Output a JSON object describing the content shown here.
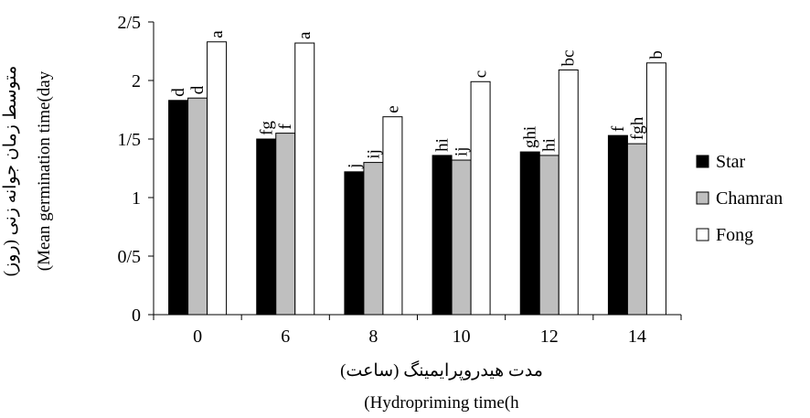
{
  "chart_data": {
    "type": "bar",
    "categories": [
      "0",
      "6",
      "8",
      "10",
      "12",
      "14"
    ],
    "series": [
      {
        "name": "Star",
        "color": "#000000",
        "values": [
          1.83,
          1.5,
          1.22,
          1.36,
          1.39,
          1.53
        ],
        "letters": [
          "d",
          "fg",
          "j",
          "hi",
          "ghi",
          "f"
        ]
      },
      {
        "name": "Chamran",
        "color": "#bfbfbf",
        "values": [
          1.85,
          1.55,
          1.3,
          1.32,
          1.36,
          1.46
        ],
        "letters": [
          "d",
          "f",
          "ij",
          "ij",
          "hi",
          "fgh"
        ]
      },
      {
        "name": "Fong",
        "color": "#ffffff",
        "values": [
          2.33,
          2.32,
          1.69,
          1.99,
          2.09,
          2.15
        ],
        "letters": [
          "a",
          "a",
          "e",
          "c",
          "bc",
          "b"
        ]
      }
    ],
    "y_ticks": [
      {
        "value": 0,
        "label": "0"
      },
      {
        "value": 0.5,
        "label": "0/5"
      },
      {
        "value": 1,
        "label": "1"
      },
      {
        "value": 1.5,
        "label": "1/5"
      },
      {
        "value": 2,
        "label": "2"
      },
      {
        "value": 2.5,
        "label": "2/5"
      }
    ],
    "ylim": [
      0,
      2.5
    ],
    "xlabel_fa": "مدت هیدروپرایمینگ (ساعت)",
    "xlabel_en": "(Hydropriming time(h",
    "ylabel_fa": "متوسط زمان جوانه زنی (روز)",
    "ylabel_en": "(Mean germination time(day",
    "grid": false,
    "legend_position": "right"
  }
}
